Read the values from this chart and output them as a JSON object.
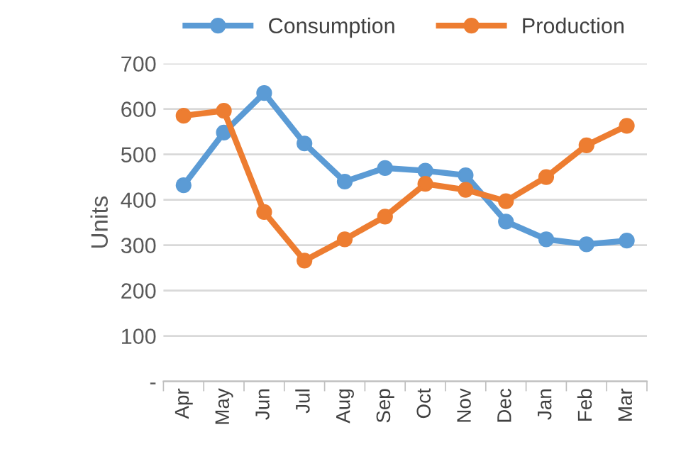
{
  "chart_data": {
    "type": "line",
    "ylabel": "Units",
    "categories": [
      "Apr",
      "May",
      "Jun",
      "Jul",
      "Aug",
      "Sep",
      "Oct",
      "Nov",
      "Dec",
      "Jan",
      "Feb",
      "Mar"
    ],
    "series": [
      {
        "name": "Consumption",
        "color": "#5b9bd5",
        "values": [
          432,
          548,
          635,
          524,
          440,
          470,
          464,
          454,
          352,
          313,
          302,
          310
        ]
      },
      {
        "name": "Production",
        "color": "#ed7d31",
        "values": [
          585,
          596,
          373,
          266,
          313,
          363,
          435,
          422,
          397,
          450,
          520,
          563
        ]
      }
    ],
    "ylim": [
      0,
      700
    ],
    "yticks": [
      {
        "value": 0,
        "label": "-"
      },
      100,
      200,
      300,
      400,
      500,
      600,
      700
    ],
    "grid": "y",
    "legend": "top",
    "marker": "circle",
    "line_style": "solid"
  }
}
